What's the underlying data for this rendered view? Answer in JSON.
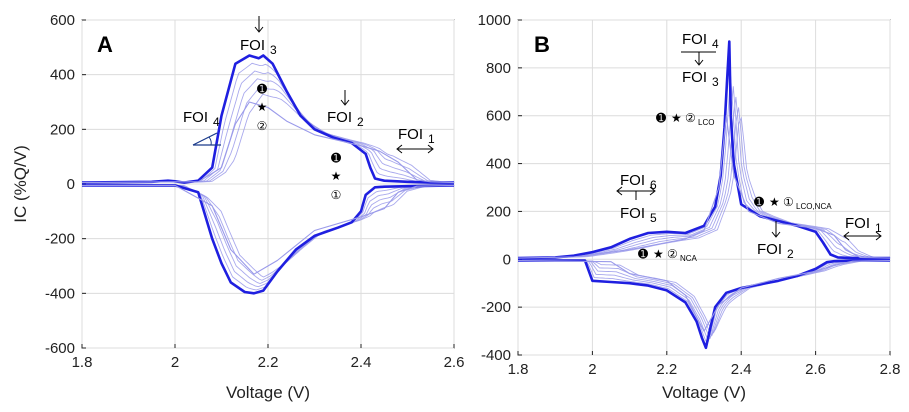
{
  "chart_data": [
    {
      "panel": "A",
      "type": "line",
      "xlabel": "Voltage (V)",
      "ylabel": "IC (%Q/V)",
      "xlim": [
        1.8,
        2.6
      ],
      "ylim": [
        -600,
        600
      ],
      "xticks": [
        "1.8",
        "2",
        "2.2",
        "2.4",
        "2.6"
      ],
      "yticks": [
        "-600",
        "-400",
        "-200",
        "0",
        "200",
        "400",
        "600"
      ],
      "grid": true,
      "series": [
        {
          "role": "charge-bold",
          "x": [
            1.8,
            1.95,
            1.985,
            2.0,
            2.02,
            2.05,
            2.08,
            2.1,
            2.13,
            2.16,
            2.18,
            2.19,
            2.21,
            2.24,
            2.27,
            2.3,
            2.34,
            2.38,
            2.41,
            2.42,
            2.43,
            2.45,
            2.5,
            2.55,
            2.6
          ],
          "y": [
            5,
            8,
            12,
            10,
            5,
            12,
            60,
            250,
            440,
            470,
            460,
            470,
            440,
            340,
            250,
            200,
            170,
            150,
            110,
            60,
            20,
            12,
            8,
            5,
            5
          ]
        },
        {
          "role": "discharge-bold",
          "x": [
            1.8,
            2.0,
            2.05,
            2.08,
            2.1,
            2.12,
            2.15,
            2.17,
            2.19,
            2.22,
            2.26,
            2.3,
            2.35,
            2.38,
            2.4,
            2.41,
            2.43,
            2.45,
            2.5,
            2.6
          ],
          "y": [
            -5,
            -5,
            -30,
            -200,
            -290,
            -360,
            -395,
            -400,
            -390,
            -320,
            -240,
            -190,
            -160,
            -140,
            -100,
            -40,
            -12,
            -10,
            -8,
            -5
          ]
        },
        {
          "role": "charge-aged",
          "x": [
            1.8,
            2.0,
            2.05,
            2.1,
            2.13,
            2.16,
            2.2,
            2.24,
            2.3,
            2.4,
            2.44,
            2.48,
            2.52,
            2.55,
            2.6
          ],
          "y": [
            5,
            8,
            8,
            60,
            220,
            300,
            280,
            230,
            180,
            140,
            120,
            80,
            15,
            8,
            5
          ]
        },
        {
          "role": "discharge-aged",
          "x": [
            1.8,
            2.0,
            2.08,
            2.12,
            2.17,
            2.22,
            2.3,
            2.4,
            2.45,
            2.48,
            2.52,
            2.6
          ],
          "y": [
            -5,
            -5,
            -80,
            -240,
            -330,
            -280,
            -170,
            -120,
            -90,
            -30,
            -8,
            -5
          ]
        }
      ],
      "annotations": [
        "FOI3",
        "FOI4",
        "FOI2",
        "FOI1"
      ]
    },
    {
      "panel": "B",
      "type": "line",
      "xlabel": "Voltage (V)",
      "ylabel": "",
      "xlim": [
        1.8,
        2.8
      ],
      "ylim": [
        -400,
        1000
      ],
      "xticks": [
        "1.8",
        "2",
        "2.2",
        "2.4",
        "2.6",
        "2.8"
      ],
      "yticks": [
        "-400",
        "-200",
        "0",
        "200",
        "400",
        "600",
        "800",
        "1000"
      ],
      "grid": true,
      "series": [
        {
          "role": "charge-bold",
          "x": [
            1.8,
            1.9,
            1.95,
            2.0,
            2.05,
            2.1,
            2.15,
            2.2,
            2.25,
            2.3,
            2.33,
            2.345,
            2.355,
            2.362,
            2.368,
            2.372,
            2.38,
            2.4,
            2.45,
            2.5,
            2.55,
            2.6,
            2.62,
            2.64,
            2.66,
            2.7,
            2.8
          ],
          "y": [
            5,
            8,
            15,
            30,
            50,
            85,
            110,
            115,
            110,
            140,
            220,
            350,
            550,
            750,
            910,
            600,
            400,
            230,
            180,
            160,
            140,
            115,
            70,
            20,
            8,
            5,
            5
          ]
        },
        {
          "role": "discharge-bold",
          "x": [
            1.8,
            1.98,
            2.0,
            2.05,
            2.1,
            2.15,
            2.2,
            2.25,
            2.28,
            2.295,
            2.305,
            2.315,
            2.33,
            2.36,
            2.4,
            2.5,
            2.55,
            2.6,
            2.63,
            2.65,
            2.7,
            2.8
          ],
          "y": [
            -5,
            -5,
            -90,
            -95,
            -100,
            -110,
            -130,
            -180,
            -260,
            -330,
            -370,
            -300,
            -200,
            -140,
            -120,
            -90,
            -70,
            -40,
            -12,
            -8,
            -5,
            -5
          ]
        },
        {
          "role": "charge-aged",
          "x": [
            1.8,
            1.95,
            2.0,
            2.1,
            2.2,
            2.25,
            2.3,
            2.34,
            2.36,
            2.38,
            2.42,
            2.5,
            2.6,
            2.65,
            2.68,
            2.72,
            2.8
          ],
          "y": [
            5,
            10,
            20,
            40,
            70,
            85,
            120,
            300,
            600,
            350,
            200,
            150,
            130,
            100,
            40,
            8,
            5
          ]
        },
        {
          "role": "discharge-aged",
          "x": [
            1.8,
            2.05,
            2.1,
            2.2,
            2.25,
            2.3,
            2.34,
            2.4,
            2.5,
            2.6,
            2.65,
            2.7,
            2.8
          ],
          "y": [
            -5,
            -10,
            -60,
            -90,
            -150,
            -300,
            -190,
            -120,
            -80,
            -50,
            -25,
            -8,
            -5
          ]
        }
      ],
      "annotations": [
        "FOI4",
        "FOI3",
        "FOI6",
        "FOI5",
        "FOI2",
        "FOI1"
      ]
    }
  ],
  "labels": {
    "panel_a": "A",
    "panel_b": "B",
    "foi": "FOI",
    "sub1": "1",
    "sub2": "2",
    "sub3": "3",
    "sub4": "4",
    "sub5": "5",
    "sub6": "6",
    "lco": "LCO",
    "nca": "NCA",
    "lco_nca": "LCO,NCA",
    "marker_filled_1": "➊",
    "star": "★",
    "circ1": "①",
    "circ2": "②"
  },
  "colors": {
    "bold": "#1f1fe0",
    "aged": "#9a9aea",
    "grid": "#dcdcdc"
  }
}
